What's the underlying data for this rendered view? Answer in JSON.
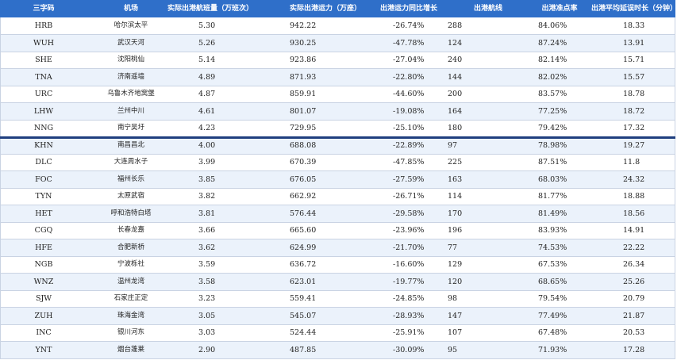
{
  "headers": {
    "code": "三字码",
    "airport": "机场",
    "flights": "实际出港航班量（万班次）",
    "capacity": "实际出港运力（万座）",
    "yoy": "出港运力同比增长",
    "routes": "出港航线",
    "ontime": "出港准点率",
    "delay": "出港平均延误时长（分钟）"
  },
  "rows": [
    {
      "code": "HRB",
      "airport": "哈尔滨太平",
      "flights": "5.30",
      "capacity": "942.22",
      "yoy": "-26.74%",
      "routes": "288",
      "ontime": "84.06%",
      "delay": "18.33"
    },
    {
      "code": "WUH",
      "airport": "武汉天河",
      "flights": "5.26",
      "capacity": "930.25",
      "yoy": "-47.78%",
      "routes": "124",
      "ontime": "87.24%",
      "delay": "13.91"
    },
    {
      "code": "SHE",
      "airport": "沈阳桃仙",
      "flights": "5.14",
      "capacity": "923.86",
      "yoy": "-27.04%",
      "routes": "240",
      "ontime": "82.14%",
      "delay": "15.71"
    },
    {
      "code": "TNA",
      "airport": "济南遥墙",
      "flights": "4.89",
      "capacity": "871.93",
      "yoy": "-22.80%",
      "routes": "144",
      "ontime": "82.02%",
      "delay": "15.57"
    },
    {
      "code": "URC",
      "airport": "乌鲁木齐地窝堡",
      "flights": "4.87",
      "capacity": "859.91",
      "yoy": "-44.60%",
      "routes": "200",
      "ontime": "83.57%",
      "delay": "18.78"
    },
    {
      "code": "LHW",
      "airport": "兰州中川",
      "flights": "4.61",
      "capacity": "801.07",
      "yoy": "-19.08%",
      "routes": "164",
      "ontime": "77.25%",
      "delay": "18.72"
    },
    {
      "code": "NNG",
      "airport": "南宁吴圩",
      "flights": "4.23",
      "capacity": "729.95",
      "yoy": "-25.10%",
      "routes": "180",
      "ontime": "79.42%",
      "delay": "17.32"
    },
    {
      "code": "KHN",
      "airport": "南昌昌北",
      "flights": "4.00",
      "capacity": "688.08",
      "yoy": "-22.89%",
      "routes": "97",
      "ontime": "78.98%",
      "delay": "19.27"
    },
    {
      "code": "DLC",
      "airport": "大连周水子",
      "flights": "3.99",
      "capacity": "670.39",
      "yoy": "-47.85%",
      "routes": "225",
      "ontime": "87.51%",
      "delay": "11.8"
    },
    {
      "code": "FOC",
      "airport": "福州长乐",
      "flights": "3.85",
      "capacity": "676.05",
      "yoy": "-27.59%",
      "routes": "163",
      "ontime": "68.03%",
      "delay": "24.32"
    },
    {
      "code": "TYN",
      "airport": "太原武宿",
      "flights": "3.82",
      "capacity": "662.92",
      "yoy": "-26.71%",
      "routes": "114",
      "ontime": "81.77%",
      "delay": "18.88"
    },
    {
      "code": "HET",
      "airport": "呼和浩特白塔",
      "flights": "3.81",
      "capacity": "576.44",
      "yoy": "-29.58%",
      "routes": "170",
      "ontime": "81.49%",
      "delay": "18.56"
    },
    {
      "code": "CGQ",
      "airport": "长春龙嘉",
      "flights": "3.66",
      "capacity": "665.60",
      "yoy": "-23.96%",
      "routes": "196",
      "ontime": "83.93%",
      "delay": "14.91"
    },
    {
      "code": "HFE",
      "airport": "合肥新桥",
      "flights": "3.62",
      "capacity": "624.99",
      "yoy": "-21.70%",
      "routes": "77",
      "ontime": "74.53%",
      "delay": "22.22"
    },
    {
      "code": "NGB",
      "airport": "宁波栎社",
      "flights": "3.59",
      "capacity": "636.72",
      "yoy": "-16.60%",
      "routes": "129",
      "ontime": "67.53%",
      "delay": "26.34"
    },
    {
      "code": "WNZ",
      "airport": "温州龙湾",
      "flights": "3.58",
      "capacity": "623.01",
      "yoy": "-19.77%",
      "routes": "120",
      "ontime": "68.65%",
      "delay": "25.26"
    },
    {
      "code": "SJW",
      "airport": "石家庄正定",
      "flights": "3.23",
      "capacity": "559.41",
      "yoy": "-24.85%",
      "routes": "98",
      "ontime": "79.54%",
      "delay": "20.79"
    },
    {
      "code": "ZUH",
      "airport": "珠海金湾",
      "flights": "3.05",
      "capacity": "545.07",
      "yoy": "-28.93%",
      "routes": "147",
      "ontime": "77.49%",
      "delay": "21.87"
    },
    {
      "code": "INC",
      "airport": "银川河东",
      "flights": "3.03",
      "capacity": "524.44",
      "yoy": "-25.91%",
      "routes": "107",
      "ontime": "67.48%",
      "delay": "20.53"
    },
    {
      "code": "YNT",
      "airport": "烟台蓬莱",
      "flights": "2.90",
      "capacity": "487.85",
      "yoy": "-30.09%",
      "routes": "95",
      "ontime": "71.93%",
      "delay": "17.28"
    }
  ]
}
